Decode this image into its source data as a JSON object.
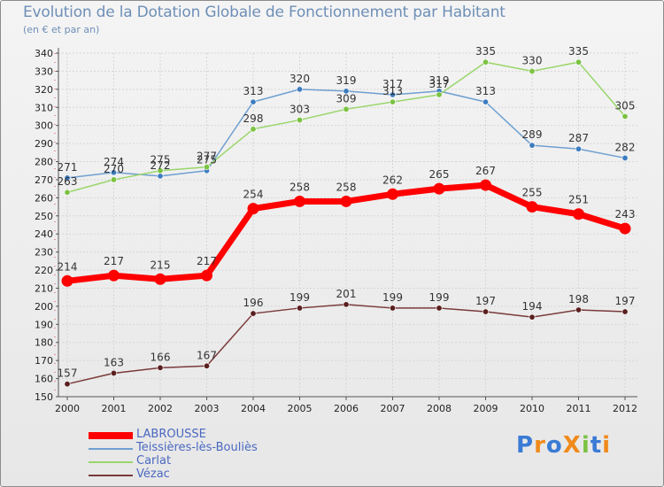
{
  "header": {
    "title": "Evolution de la Dotation Globale de Fonctionnement par Habitant",
    "subtitle": "(en € et par an)"
  },
  "logo": {
    "text": "ProXiti",
    "letters": [
      "P",
      "r",
      "o",
      "X",
      "i",
      "t",
      "i"
    ],
    "colors": [
      "#3a7bd5",
      "#f08a1c",
      "#3a7bd5",
      "#f08a1c",
      "#7cc242",
      "#3a7bd5",
      "#f08a1c"
    ]
  },
  "chart_data": {
    "type": "line",
    "title": "Evolution de la Dotation Globale de Fonctionnement par Habitant",
    "subtitle": "(en € et par an)",
    "xlabel": "",
    "ylabel": "",
    "categories": [
      "2000",
      "2001",
      "2002",
      "2003",
      "2004",
      "2005",
      "2006",
      "2007",
      "2008",
      "2009",
      "2010",
      "2011",
      "2012"
    ],
    "ylim": [
      150,
      340
    ],
    "yticks": [
      150,
      160,
      170,
      180,
      190,
      200,
      210,
      220,
      230,
      240,
      250,
      260,
      270,
      280,
      290,
      300,
      310,
      320,
      330,
      340
    ],
    "grid": true,
    "legend_position": "bottom-left",
    "series": [
      {
        "name": "Teissières-lès-Bouliès",
        "color": "#6f9fd0",
        "point_color": "#3d7cc0",
        "emphasis": false,
        "values": [
          271,
          274,
          272,
          275,
          313,
          320,
          319,
          317,
          319,
          313,
          289,
          287,
          282
        ]
      },
      {
        "name": "Carlat",
        "color": "#9ad66b",
        "point_color": "#7cc242",
        "emphasis": false,
        "values": [
          263,
          270,
          275,
          277,
          298,
          303,
          309,
          313,
          317,
          335,
          330,
          335,
          305
        ]
      },
      {
        "name": "Vézac",
        "color": "#7a3a3a",
        "point_color": "#5a1f1f",
        "emphasis": false,
        "values": [
          157,
          163,
          166,
          167,
          196,
          199,
          201,
          199,
          199,
          197,
          194,
          198,
          197
        ]
      },
      {
        "name": "LABROUSSE",
        "color": "#ff0000",
        "point_color": "#ff0000",
        "emphasis": true,
        "values": [
          214,
          217,
          215,
          217,
          254,
          258,
          258,
          262,
          265,
          267,
          255,
          251,
          243
        ]
      }
    ],
    "legend_order": [
      "LABROUSSE",
      "Teissières-lès-Bouliès",
      "Carlat",
      "Vézac"
    ]
  }
}
